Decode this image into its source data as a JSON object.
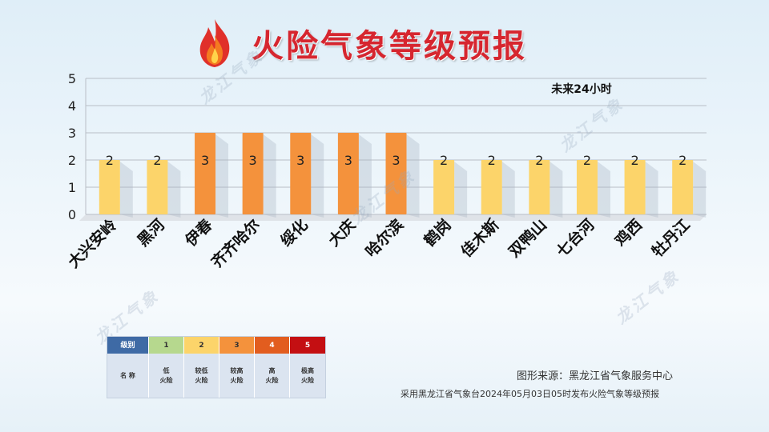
{
  "title": "火险气象等级预报",
  "colors": {
    "level1": "#b6d88e",
    "level2": "#fcd46a",
    "level3": "#f4923c",
    "level4": "#e25d1f",
    "level5": "#c40f12",
    "legend_header": "#3e6aa5",
    "grid": "#b9bec6"
  },
  "chart_data": {
    "type": "bar",
    "annotation": "未来24小时",
    "categories": [
      "大兴安岭",
      "黑河",
      "伊春",
      "齐齐哈尔",
      "绥化",
      "大庆",
      "哈尔滨",
      "鹤岗",
      "佳木斯",
      "双鸭山",
      "七台河",
      "鸡西",
      "牡丹江"
    ],
    "values": [
      2,
      2,
      3,
      3,
      3,
      3,
      3,
      2,
      2,
      2,
      2,
      2,
      2
    ],
    "ylim": [
      0,
      5
    ],
    "yticks": [
      0,
      1,
      2,
      3,
      4,
      5
    ],
    "grid": true,
    "data_labels": true
  },
  "legend": {
    "header_label": "级别",
    "name_label": "名 称",
    "levels": [
      {
        "level": "1",
        "name_line1": "低",
        "name_line2": "火险"
      },
      {
        "level": "2",
        "name_line1": "较低",
        "name_line2": "火险"
      },
      {
        "level": "3",
        "name_line1": "较高",
        "name_line2": "火险"
      },
      {
        "level": "4",
        "name_line1": "高",
        "name_line2": "火险"
      },
      {
        "level": "5",
        "name_line1": "极高",
        "name_line2": "火险"
      }
    ]
  },
  "watermark_text": "龙江气象",
  "source": "图形来源：黑龙江省气象服务中心",
  "footnote": "采用黑龙江省气象台2024年05月03日05时发布火险气象等级预报"
}
